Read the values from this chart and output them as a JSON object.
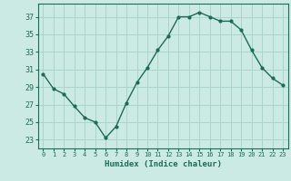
{
  "x": [
    0,
    1,
    2,
    3,
    4,
    5,
    6,
    7,
    8,
    9,
    10,
    11,
    12,
    13,
    14,
    15,
    16,
    17,
    18,
    19,
    20,
    21,
    22,
    23
  ],
  "y": [
    30.5,
    28.8,
    28.2,
    26.8,
    25.5,
    25.0,
    23.2,
    24.5,
    27.2,
    29.5,
    31.2,
    33.2,
    34.8,
    37.0,
    37.0,
    37.5,
    37.0,
    36.5,
    36.5,
    35.5,
    33.2,
    31.2,
    30.0,
    29.2
  ],
  "line_color": "#1a6b5a",
  "marker": "o",
  "marker_size": 2,
  "bg_color": "#cceae4",
  "grid_color": "#aad4cc",
  "xlabel": "Humidex (Indice chaleur)",
  "xlim": [
    -0.5,
    23.5
  ],
  "ylim": [
    22,
    38.5
  ],
  "yticks": [
    23,
    25,
    27,
    29,
    31,
    33,
    35,
    37
  ],
  "xticks": [
    0,
    1,
    2,
    3,
    4,
    5,
    6,
    7,
    8,
    9,
    10,
    11,
    12,
    13,
    14,
    15,
    16,
    17,
    18,
    19,
    20,
    21,
    22,
    23
  ],
  "tick_color": "#1a6b5a",
  "label_color": "#1a6b5a",
  "axis_color": "#1a6b5a"
}
